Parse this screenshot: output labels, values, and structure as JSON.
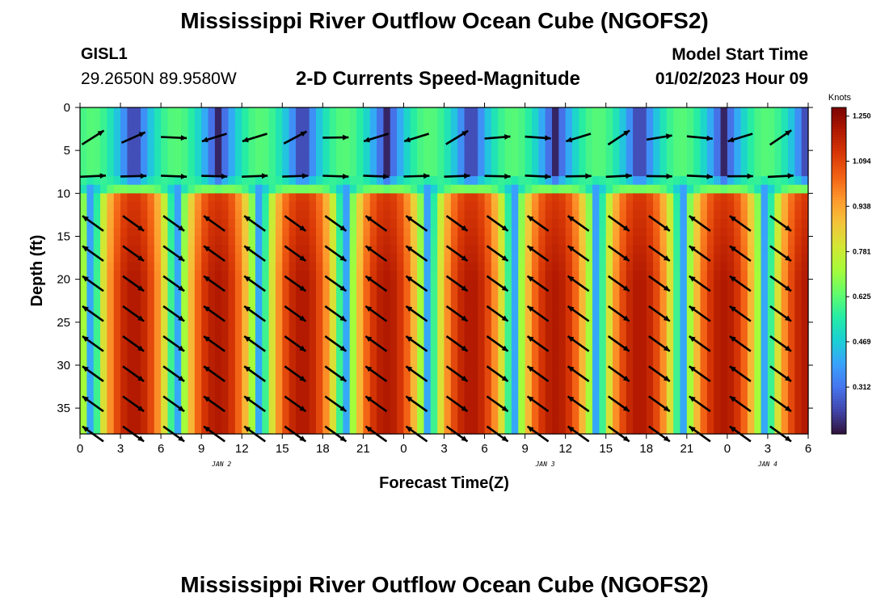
{
  "header": {
    "title": "Mississippi River Outflow Ocean Cube (NGOFS2)",
    "station_id": "GISL1",
    "coordinates": "29.2650N  89.9580W",
    "subtitle": "2-D Currents Speed-Magnitude",
    "model_start_label": "Model Start Time",
    "model_start_value": "01/02/2023 Hour 09"
  },
  "footer": {
    "title": "Mississippi River Outflow Ocean Cube (NGOFS2)"
  },
  "chart_data": {
    "type": "heatmap",
    "title": "2-D Currents Speed-Magnitude",
    "xlabel": "Forecast Time(Z)",
    "ylabel": "Depth (ft)",
    "x_tick_labels": [
      "0",
      "3",
      "6",
      "9",
      "12",
      "15",
      "18",
      "21",
      "0",
      "3",
      "6",
      "9",
      "12",
      "15",
      "18",
      "21",
      "0",
      "3",
      "6"
    ],
    "x_range_hours_since_jan2_00z": [
      0,
      54
    ],
    "x_tick_step_hours": 3,
    "date_labels": [
      {
        "label": "JAN 2",
        "hour": 10.5
      },
      {
        "label": "JAN 3",
        "hour": 34.5
      },
      {
        "label": "JAN 4",
        "hour": 51
      }
    ],
    "y_tick_labels": [
      "0",
      "5",
      "10",
      "15",
      "20",
      "25",
      "30",
      "35"
    ],
    "y_ticks": [
      0,
      5,
      10,
      15,
      20,
      25,
      30,
      35
    ],
    "y_range_ft": [
      0,
      38
    ],
    "y_inverted": true,
    "colorbar": {
      "unit": "Knots",
      "labels": [
        "1.250",
        "1.094",
        "0.938",
        "0.781",
        "0.625",
        "0.469",
        "0.312"
      ],
      "min": 0.15,
      "max": 1.28,
      "colormap": [
        "#30123b",
        "#4145ab",
        "#4675ed",
        "#39a2fc",
        "#1bcfd4",
        "#24eca6",
        "#61fc6c",
        "#a4fc3b",
        "#d1e834",
        "#f3c63a",
        "#fe9b2d",
        "#f36315",
        "#d93806",
        "#b11901",
        "#7a0403"
      ]
    },
    "tidal_cycle": {
      "period_hours": 12.5,
      "phase_hours_at_max_speed": 4.0,
      "upper_layer_depth_ft": [
        0,
        8
      ],
      "lower_layer_depth_ft": [
        10,
        38
      ],
      "upper_layer_max_speed_knots": 0.62,
      "lower_layer_max_speed_knots": 1.2,
      "min_speed_knots": 0.18
    },
    "vectors": {
      "x_hours": [
        0,
        3,
        6,
        9,
        12,
        15,
        18,
        21,
        24,
        27,
        30,
        33,
        36,
        39,
        42,
        45,
        48,
        51,
        54
      ],
      "depths_ft": [
        3.5,
        8,
        13.5,
        17,
        20.5,
        24,
        27.5,
        31,
        34.5,
        38
      ],
      "upper_direction": "eastward",
      "lower_direction": "southeast (ebb) / northwest (flood)"
    },
    "grid": false,
    "legend": "right"
  }
}
